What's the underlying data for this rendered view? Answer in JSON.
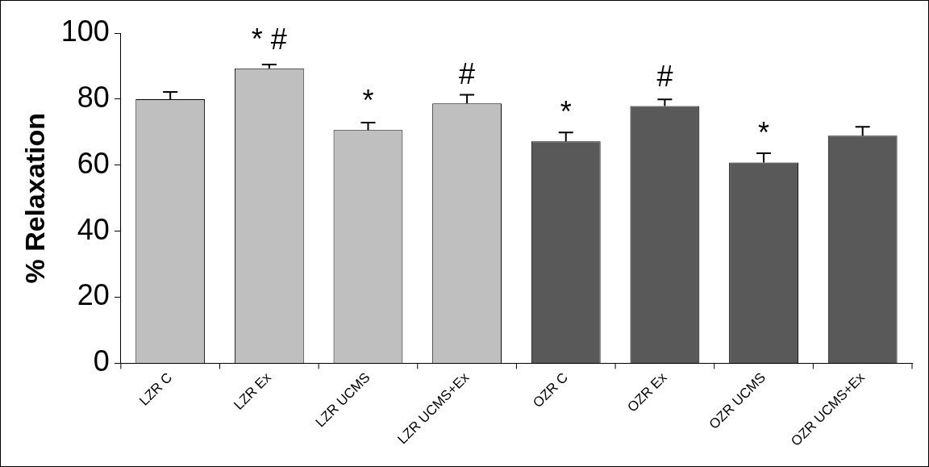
{
  "chart_data": {
    "type": "bar",
    "ylabel": "% Relaxation",
    "categories": [
      "LZR C",
      "LZR Ex",
      "LZR UCMS",
      "LZR UCMS+Ex",
      "OZR C",
      "OZR Ex",
      "OZR UCMS",
      "OZR UCMS+Ex"
    ],
    "values": [
      80.0,
      89.3,
      70.6,
      78.7,
      67.2,
      77.9,
      60.8,
      68.9
    ],
    "errors": [
      2.2,
      1.2,
      2.3,
      2.6,
      2.7,
      2.0,
      2.8,
      2.7
    ],
    "colors": [
      "#bfbfbf",
      "#bfbfbf",
      "#bfbfbf",
      "#bfbfbf",
      "#595959",
      "#595959",
      "#595959",
      "#595959"
    ],
    "ylim": [
      0,
      100
    ],
    "yticks": [
      0,
      20,
      40,
      60,
      80,
      100
    ],
    "grid": false,
    "legend": false,
    "annotations": [
      {
        "text": "* #",
        "x": "LZR Ex",
        "y": 89.3
      },
      {
        "text": "*",
        "x": "LZR UCMS",
        "y": 70.6
      },
      {
        "text": "#",
        "x": "LZR UCMS+Ex",
        "y": 78.7
      },
      {
        "text": "*",
        "x": "OZR C",
        "y": 67.2
      },
      {
        "text": "#",
        "x": "OZR Ex",
        "y": 77.9
      },
      {
        "text": "*",
        "x": "OZR UCMS",
        "y": 60.8
      }
    ]
  }
}
